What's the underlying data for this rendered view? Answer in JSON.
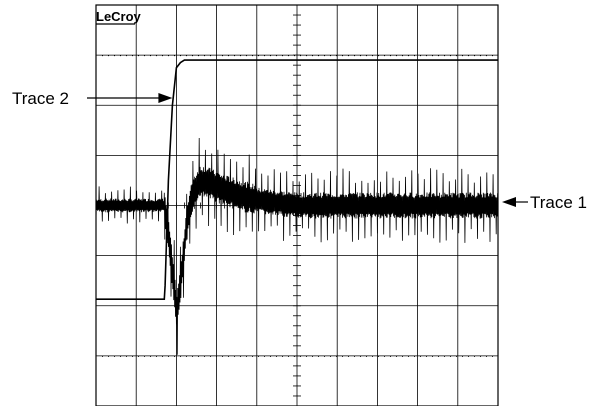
{
  "chart_data": {
    "type": "line",
    "title": "",
    "brand": "LeCroy",
    "grid": true,
    "divisions": {
      "x": 10,
      "y": 8
    },
    "ylim": [
      -4,
      4
    ],
    "xlim": [
      0,
      10
    ],
    "annotations": [
      {
        "text": "Trace 2",
        "points_to": "Trace 2",
        "at_x": 2.0,
        "at_y": 2.1
      },
      {
        "text": "Trace 1",
        "points_to": "Trace 1",
        "at_x": 10.0,
        "at_y": 0.0
      }
    ],
    "series": [
      {
        "name": "Trace 2",
        "x": [
          0,
          1.7,
          1.72,
          1.8,
          1.9,
          2.0,
          2.1,
          2.2,
          2.4,
          10
        ],
        "y": [
          -1.87,
          -1.87,
          -1.6,
          0.5,
          2.0,
          2.75,
          2.85,
          2.9,
          2.9,
          2.9
        ]
      },
      {
        "name": "Trace 1",
        "x": [
          0,
          1.7,
          1.85,
          2.0,
          2.1,
          2.25,
          2.4,
          2.6,
          2.8,
          3.2,
          3.6,
          4.0,
          5.0,
          10
        ],
        "y": [
          0.0,
          0.0,
          -0.9,
          -2.1,
          -1.6,
          -0.4,
          0.2,
          0.5,
          0.45,
          0.3,
          0.2,
          0.1,
          0.0,
          0.0
        ]
      }
    ]
  }
}
